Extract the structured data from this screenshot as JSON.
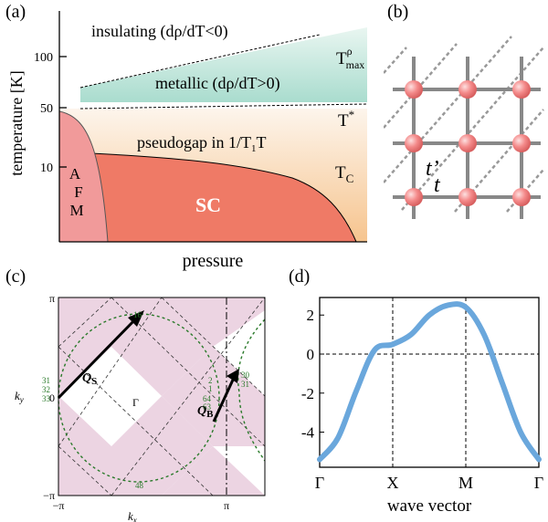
{
  "panel_a": {
    "label": "(a)",
    "ylabel": "temperature [K]",
    "xlabel": "pressure",
    "yticks": [
      "100",
      "50",
      "10"
    ],
    "region_insulating": "insulating (dρ/dT<0)",
    "region_metallic": "metallic (dρ/dT>0)",
    "region_pseudogap_pre": "pseudogap in 1/T",
    "region_pseudogap_sub": "1",
    "region_pseudogap_post": "T",
    "region_afm": [
      "A",
      "F",
      "M"
    ],
    "region_sc": "SC",
    "line_tmax_main": "T",
    "line_tmax_sup": "ρ",
    "line_tmax_sub": "max",
    "line_tstar_main": "T",
    "line_tstar_sup": "*",
    "line_tc_main": "T",
    "line_tc_sub": "C"
  },
  "panel_b": {
    "label": "(b)",
    "hop_nn": "t",
    "hop_nnn": "t’"
  },
  "panel_c": {
    "label": "(c)",
    "xticks": [
      "−π",
      "π"
    ],
    "yticks": [
      "π",
      "0",
      "−π"
    ],
    "gamma": "Γ",
    "xlabel_main": "k",
    "xlabel_sub": "x",
    "ylabel_main": "k",
    "ylabel_sub": "y",
    "qs_main": "Q",
    "qs_sub": "S",
    "qb_main": "Q",
    "qb_sub": "B",
    "point_labels": [
      "16",
      "31",
      "32",
      "33",
      "2",
      "1",
      "64",
      "63",
      "48",
      "30",
      "31"
    ]
  },
  "panel_d": {
    "label": "(d)",
    "xlabel": "wave vector",
    "xticks": [
      "Γ",
      "X",
      "M",
      "Γ"
    ],
    "yticks": [
      "2",
      "0",
      "-2",
      "-4"
    ],
    "colors": {
      "curve": "#6aa7dc"
    }
  },
  "chart_data": [
    {
      "type": "line",
      "x_categories": [
        "Γ",
        "X",
        "M",
        "Γ"
      ],
      "ylim": [
        -5.8,
        2.9
      ],
      "series": [
        {
          "x": [
            0,
            0.25,
            0.5,
            0.75,
            1,
            1.25,
            1.5,
            1.75,
            2,
            2.25,
            2.5,
            2.75,
            3
          ],
          "values": [
            -5.4,
            -4.3,
            -1.9,
            0.2,
            0.5,
            1.0,
            2.0,
            2.5,
            2.4,
            1.0,
            -1.5,
            -4.0,
            -5.4
          ]
        }
      ],
      "xlabel": "wave vector",
      "grid": false
    }
  ]
}
